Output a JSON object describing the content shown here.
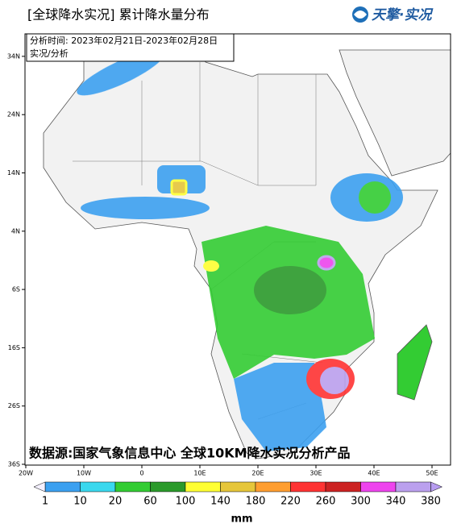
{
  "header": {
    "title": "[全球降水实况] 累计降水量分布",
    "logo": "天擎·实况"
  },
  "info": {
    "time": "分析时间: 2023年02月21日-2023年02月28日",
    "kind": "实况/分析"
  },
  "source": "数据源:国家气象信息中心 全球10KM降水实况分析产品",
  "axes": {
    "lat_ticks": [
      {
        "value": 34,
        "label": "34N"
      },
      {
        "value": 24,
        "label": "24N"
      },
      {
        "value": 14,
        "label": "14N"
      },
      {
        "value": 4,
        "label": "4N"
      },
      {
        "value": -6,
        "label": "6S"
      },
      {
        "value": -16,
        "label": "16S"
      },
      {
        "value": -26,
        "label": "26S"
      },
      {
        "value": -36,
        "label": "36S"
      }
    ],
    "lon_ticks": [
      {
        "value": -20,
        "label": "20W"
      },
      {
        "value": -10,
        "label": "10W"
      },
      0,
      {
        "value": 10,
        "label": "10E"
      },
      {
        "value": 20,
        "label": "20E"
      },
      {
        "value": 30,
        "label": "30E"
      },
      {
        "value": 40,
        "label": "40E"
      },
      {
        "value": 50,
        "label": "50E"
      }
    ]
  },
  "colorbar": {
    "levels": [
      1,
      10,
      20,
      60,
      100,
      140,
      180,
      220,
      260,
      300,
      340,
      380
    ],
    "colors": [
      "#3ba0f0",
      "#3ad8ee",
      "#33cc33",
      "#2b9a2b",
      "#ffff33",
      "#e6c63a",
      "#ff9e30",
      "#ff3333",
      "#cc2222",
      "#ee44ee",
      "#bba0ee"
    ],
    "extend_colors": [
      "#f4f0ff",
      "#b79cf0"
    ],
    "unit": "mm"
  }
}
